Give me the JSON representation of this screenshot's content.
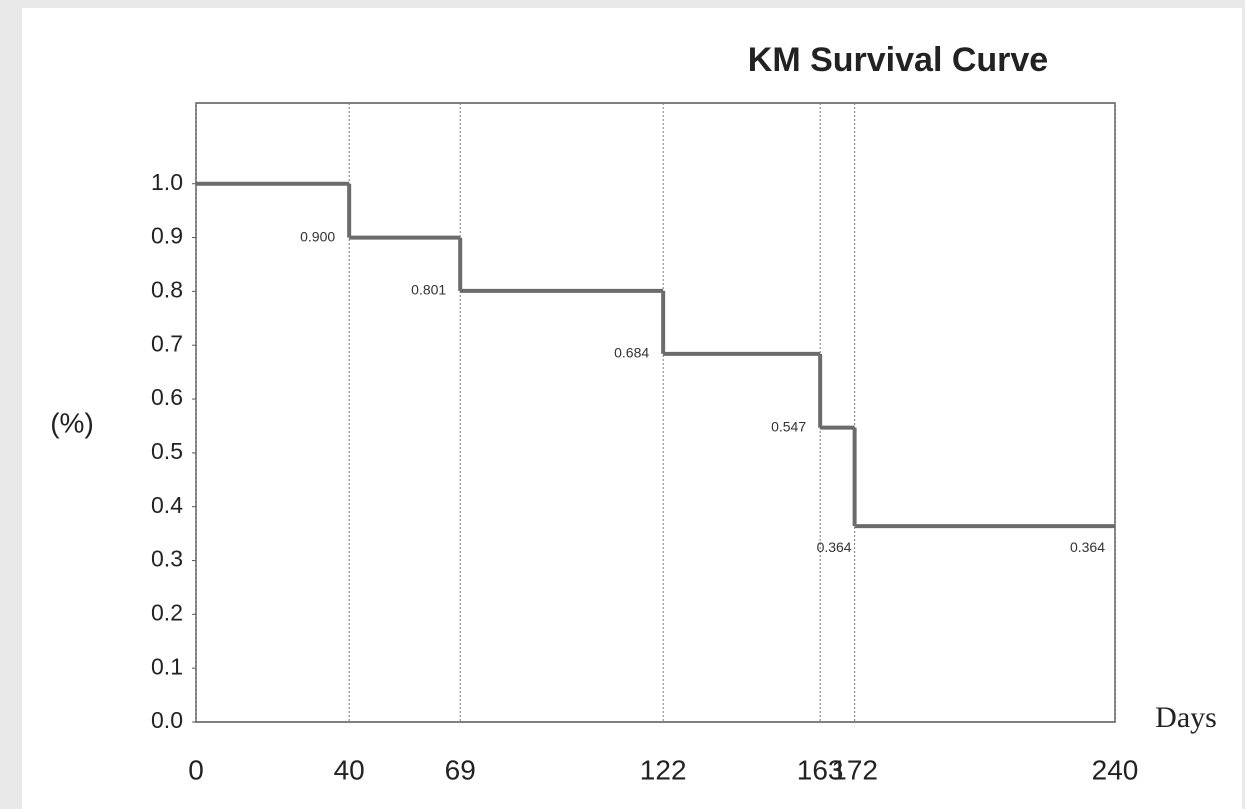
{
  "chart_data": {
    "type": "step",
    "title": "KM Survival Curve",
    "y_label": "(%)",
    "x_label": "Days",
    "x": [
      0,
      40,
      69,
      122,
      163,
      172,
      240
    ],
    "values": [
      1.0,
      0.9,
      0.801,
      0.684,
      0.547,
      0.364,
      0.364
    ],
    "value_labels": [
      null,
      "0.900",
      "0.801",
      "0.684",
      "0.547",
      "0.364",
      "0.364"
    ],
    "color": "#6b6b6b",
    "title_color": "#ee1111",
    "xlim": [
      0,
      240
    ],
    "xticks": [
      0,
      40,
      69,
      122,
      163,
      172,
      240
    ],
    "ylim": [
      0,
      1.15
    ],
    "yticks": [
      {
        "value": 0,
        "label": "0.0"
      },
      0.1,
      0.2,
      0.3,
      0.4,
      0.5,
      0.6,
      0.7,
      0.8,
      0.9,
      {
        "value": 1,
        "label": "1.0"
      }
    ],
    "grid": true
  }
}
